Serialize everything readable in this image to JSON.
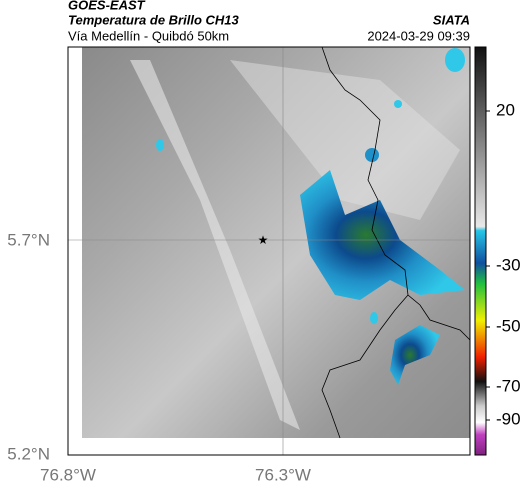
{
  "header": {
    "satellite": "GOES-EAST",
    "title": "Temperatura de Brillo CH13",
    "source": "SIATA",
    "subtitle": "Vía Medellín - Quibdó 50km",
    "timestamp": "2024-03-29 09:39"
  },
  "map": {
    "lat_labels": [
      "5.7°N",
      "5.2°N"
    ],
    "lon_labels": [
      "76.8°W",
      "76.3°W"
    ]
  },
  "colorbar": {
    "ticks": [
      20,
      -30,
      -50,
      -70,
      -90
    ]
  }
}
